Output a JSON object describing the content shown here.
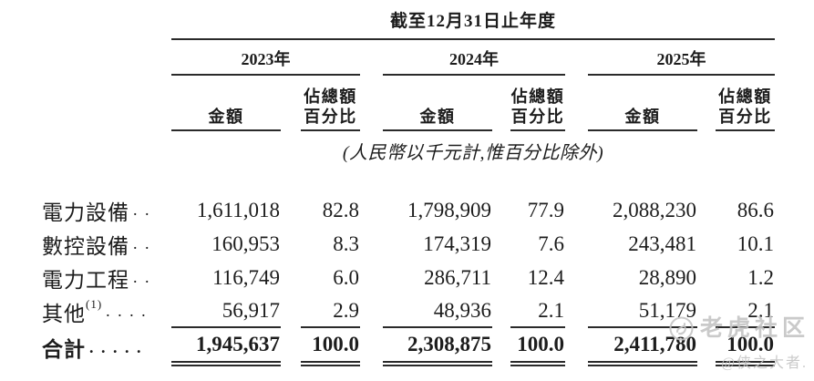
{
  "colors": {
    "text": "#1c1c1c",
    "rule": "#2a2a2a",
    "watermark_gray": "#c5c5c5",
    "background": "#ffffff"
  },
  "table": {
    "period_header": "截至12月31日止年度",
    "years": [
      {
        "label": "2023年"
      },
      {
        "label": "2024年"
      },
      {
        "label": "2025年"
      }
    ],
    "amount_header": "金額",
    "pct_header_line1": "佔總額",
    "pct_header_line2": "百分比",
    "unit_note": "(人民幣以千元計,惟百分比除外)",
    "rows": [
      {
        "label": "電力設備",
        "sup": "",
        "dots": ". .",
        "values": [
          "1,611,018",
          "82.8",
          "1,798,909",
          "77.9",
          "2,088,230",
          "86.6"
        ]
      },
      {
        "label": "數控設備",
        "sup": "",
        "dots": ". .",
        "values": [
          "160,953",
          "8.3",
          "174,319",
          "7.6",
          "243,481",
          "10.1"
        ]
      },
      {
        "label": "電力工程",
        "sup": "",
        "dots": ". .",
        "values": [
          "116,749",
          "6.0",
          "286,711",
          "12.4",
          "28,890",
          "1.2"
        ]
      },
      {
        "label": "其他",
        "sup": "(1)",
        "dots": ". . . .",
        "values": [
          "56,917",
          "2.9",
          "48,936",
          "2.1",
          "51,179",
          "2.1"
        ]
      }
    ],
    "total": {
      "label": "合計",
      "sup": "",
      "dots": ". . . . .",
      "values": [
        "1,945,637",
        "100.0",
        "2,308,875",
        "100.0",
        "2,411,780",
        "100.0"
      ]
    }
  },
  "watermark": {
    "site": "老虎社区",
    "user": "@侠之大者."
  }
}
